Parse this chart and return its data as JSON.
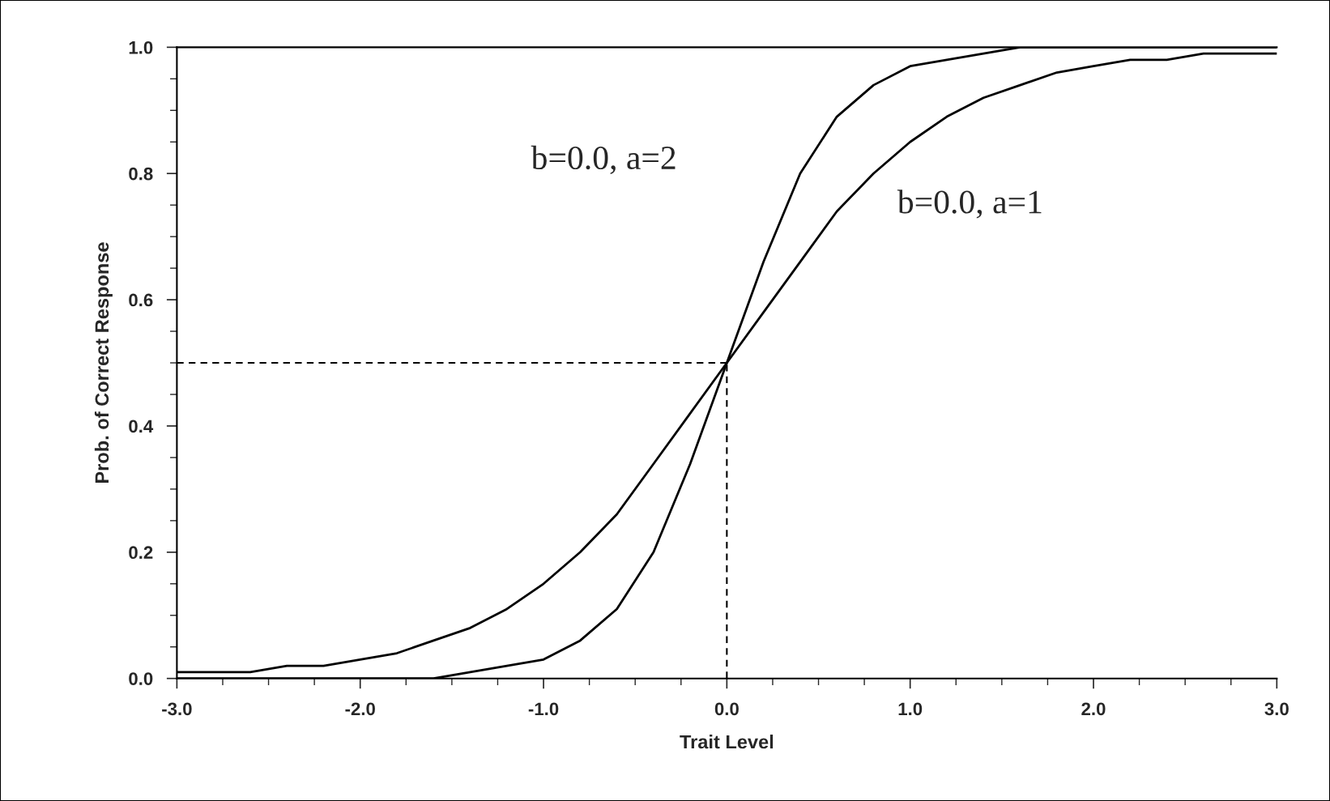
{
  "chart_data": {
    "type": "line",
    "xlabel": "Trait Level",
    "ylabel": "Prob. of Correct Response",
    "x": [
      -3.0,
      -2.8,
      -2.6,
      -2.4,
      -2.2,
      -2.0,
      -1.8,
      -1.6,
      -1.4,
      -1.2,
      -1.0,
      -0.8,
      -0.6,
      -0.4,
      -0.2,
      0.0,
      0.2,
      0.4,
      0.6,
      0.8,
      1.0,
      1.2,
      1.4,
      1.6,
      1.8,
      2.0,
      2.2,
      2.4,
      2.6,
      2.8,
      3.0
    ],
    "series": [
      {
        "color": "#000000",
        "values": [
          0.01,
          0.01,
          0.01,
          0.02,
          0.02,
          0.03,
          0.04,
          0.06,
          0.08,
          0.11,
          0.15,
          0.2,
          0.26,
          0.34,
          0.42,
          0.5,
          0.58,
          0.66,
          0.74,
          0.8,
          0.85,
          0.89,
          0.92,
          0.94,
          0.96,
          0.97,
          0.98,
          0.98,
          0.99,
          0.99,
          0.99
        ]
      },
      {
        "color": "#000000",
        "values": [
          0.0,
          0.0,
          0.0,
          0.0,
          0.0,
          0.0,
          0.0,
          0.0,
          0.01,
          0.02,
          0.03,
          0.06,
          0.11,
          0.2,
          0.34,
          0.5,
          0.66,
          0.8,
          0.89,
          0.94,
          0.97,
          0.98,
          0.99,
          1.0,
          1.0,
          1.0,
          1.0,
          1.0,
          1.0,
          1.0,
          1.0
        ]
      }
    ],
    "xlim": [
      -3.0,
      3.0
    ],
    "ylim": [
      0.0,
      1.0
    ],
    "xticks": [
      {
        "value": -3.0,
        "label": "-3.0"
      },
      {
        "value": -2.0,
        "label": "-2.0"
      },
      {
        "value": -1.0,
        "label": "-1.0"
      },
      {
        "value": 0.0,
        "label": "0.0"
      },
      {
        "value": 1.0,
        "label": "1.0"
      },
      {
        "value": 2.0,
        "label": "2.0"
      },
      {
        "value": 3.0,
        "label": "3.0"
      }
    ],
    "yticks": [
      {
        "value": 0.0,
        "label": "0.0"
      },
      {
        "value": 0.2,
        "label": "0.2"
      },
      {
        "value": 0.4,
        "label": "0.4"
      },
      {
        "value": 0.6,
        "label": "0.6"
      },
      {
        "value": 0.8,
        "label": "0.8"
      },
      {
        "value": 1.0,
        "label": "1.0"
      }
    ],
    "ref_lines": [
      {
        "axis": "y",
        "value": 0.5,
        "color": "#000000",
        "line_style": "dashed"
      },
      {
        "axis": "x",
        "value": 0.0,
        "color": "#000000",
        "line_style": "dashed"
      }
    ],
    "annotations": [
      "b=0.0, a=2",
      "b=0.0, a=1"
    ],
    "grid": false,
    "legend": false,
    "line_style": "solid",
    "marker": "none"
  }
}
